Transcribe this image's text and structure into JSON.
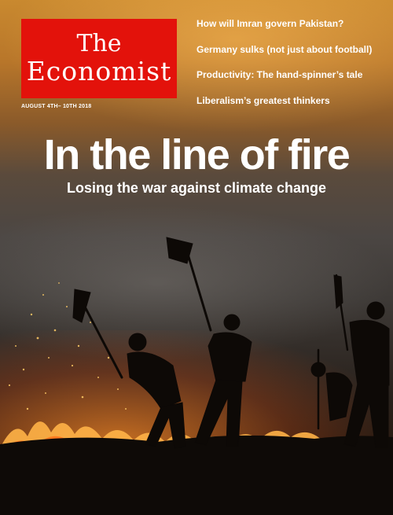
{
  "masthead": {
    "line1": "The",
    "line2": "Economist"
  },
  "dateline": "AUGUST 4TH– 10TH 2018",
  "teasers": [
    "How will Imran govern Pakistan?",
    "Germany sulks (not just about football)",
    "Productivity: The hand-spinner’s tale",
    "Liberalism’s greatest thinkers"
  ],
  "headline": "In the line of fire",
  "subhead": "Losing the war against climate change",
  "colors": {
    "brand_red": "#e3120b",
    "fire": "#ff8c28",
    "sky": "#c9892f"
  }
}
